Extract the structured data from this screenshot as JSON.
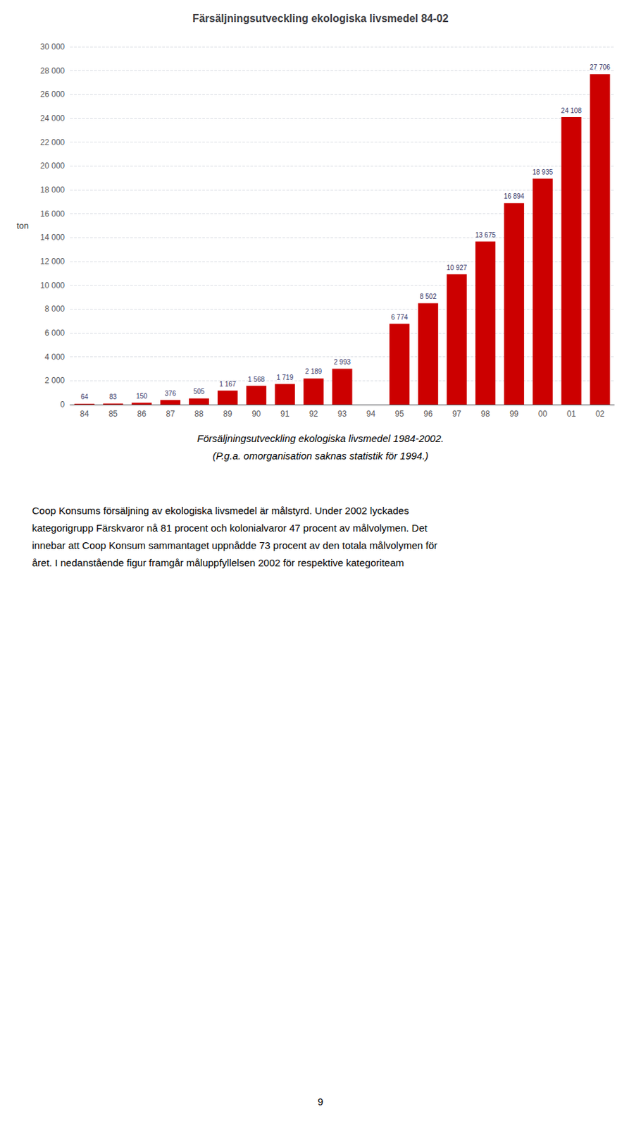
{
  "chart_data": {
    "type": "bar",
    "title": "Färsäljningsutveckling ekologiska livsmedel 84-02",
    "ylabel": "ton",
    "categories": [
      "84",
      "85",
      "86",
      "87",
      "88",
      "89",
      "90",
      "91",
      "92",
      "93",
      "94",
      "95",
      "96",
      "97",
      "98",
      "99",
      "00",
      "01",
      "02"
    ],
    "values": [
      64,
      83,
      150,
      376,
      505,
      1167,
      1568,
      1719,
      2189,
      2993,
      0,
      6774,
      8502,
      10927,
      13675,
      16894,
      18935,
      24108,
      27706
    ],
    "value_labels": [
      "64",
      "83",
      "150",
      "376",
      "505",
      "1 167",
      "1 568",
      "1 719",
      "2 189",
      "2 993",
      null,
      "6 774",
      "8 502",
      "10 927",
      "13 675",
      "16 894",
      "18 935",
      "24 108",
      "27 706"
    ],
    "data_labels": true,
    "color": "#cc0000",
    "ylim": [
      0,
      30000
    ],
    "yticks": [
      0,
      {
        "value": 2000,
        "label": "2 000"
      },
      {
        "value": 4000,
        "label": "4 000"
      },
      {
        "value": 6000,
        "label": "6 000"
      },
      {
        "value": 8000,
        "label": "8 000"
      },
      {
        "value": 10000,
        "label": "10 000"
      },
      {
        "value": 12000,
        "label": "12 000"
      },
      {
        "value": 14000,
        "label": "14 000"
      },
      {
        "value": 16000,
        "label": "16 000"
      },
      {
        "value": 18000,
        "label": "18 000"
      },
      {
        "value": 20000,
        "label": "20 000"
      },
      {
        "value": 22000,
        "label": "22 000"
      },
      {
        "value": 24000,
        "label": "24 000"
      },
      {
        "value": 26000,
        "label": "26 000"
      },
      {
        "value": 28000,
        "label": "28 000"
      },
      {
        "value": 30000,
        "label": "30 000"
      }
    ],
    "grid": true,
    "caption": [
      "Försäljningsutveckling ekologiska livsmedel 1984-2002.",
      "(P.g.a. omorganisation saknas statistik för 1994.)"
    ],
    "body_text": "Coop Konsums försäljning av ekologiska livsmedel är målstyrd. Under 2002 lyckades\nkategorigrupp Färskvaror nå 81 procent och kolonialvaror 47 procent av målvolymen. Det\ninnebar att Coop Konsum sammantaget uppnådde 73 procent av den totala målvolymen för\nåret. I nedanstående figur framgår måluppfyllelsen 2002 för respektive kategoriteam",
    "page_number": "9"
  }
}
